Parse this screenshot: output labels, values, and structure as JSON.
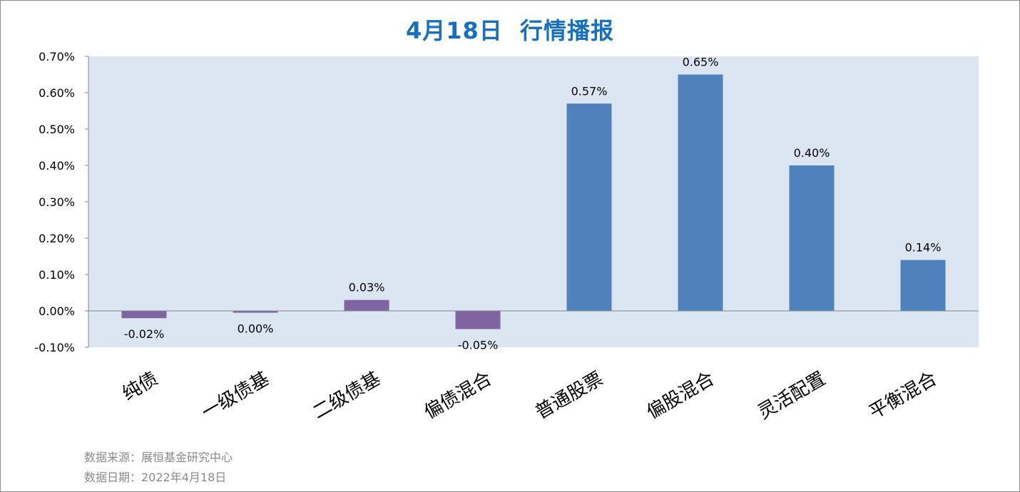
{
  "chart_data": {
    "type": "bar",
    "title": "4月18日  行情播报",
    "categories": [
      "纯债",
      "一级债基",
      "二级债基",
      "偏债混合",
      "普通股票",
      "偏股混合",
      "灵活配置",
      "平衡混合"
    ],
    "values": [
      -0.02,
      -0.005,
      0.03,
      -0.05,
      0.57,
      0.65,
      0.4,
      0.14
    ],
    "data_labels": [
      "-0.02%",
      "0.00%",
      "0.03%",
      "-0.05%",
      "0.57%",
      "0.65%",
      "0.40%",
      "0.14%"
    ],
    "bar_colors": [
      "#8064a2",
      "#8064a2",
      "#8064a2",
      "#8064a2",
      "#4f81bd",
      "#4f81bd",
      "#4f81bd",
      "#4f81bd"
    ],
    "ylim": [
      -0.1,
      0.7
    ],
    "yticks": [
      0.7,
      0.6,
      0.5,
      0.4,
      0.3,
      0.2,
      0.1,
      0.0,
      -0.1
    ],
    "ytick_labels": [
      "0.70%",
      "0.60%",
      "0.50%",
      "0.40%",
      "0.30%",
      "0.20%",
      "0.10%",
      "0.00%",
      "-0.10%"
    ],
    "plot_background": "#dce6f2",
    "title_color": "#1570c2",
    "xlabel": "",
    "ylabel": "",
    "grid": false
  },
  "footer": {
    "source": "数据来源：展恒基金研究中心",
    "date": "数据日期：2022年4月18日"
  }
}
